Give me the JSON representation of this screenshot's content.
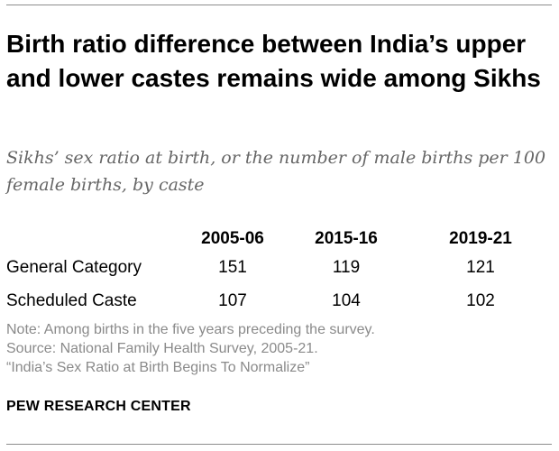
{
  "title": "Birth ratio difference between India’s upper and lower castes remains wide among Sikhs",
  "subtitle": "Sikhs’ sex ratio at birth, or the number of male births per 100 female births, by caste",
  "chart_data": {
    "type": "table",
    "title": "Birth ratio difference between India’s upper and lower castes remains wide among Sikhs",
    "subtitle": "Sikhs’ sex ratio at birth, or the number of male births per 100 female births, by caste",
    "columns": [
      "2005-06",
      "2015-16",
      "2019-21"
    ],
    "rows": [
      {
        "label": "General Category",
        "values": [
          "151",
          "119",
          "121"
        ]
      },
      {
        "label": "Scheduled Caste",
        "values": [
          "107",
          "104",
          "102"
        ]
      }
    ]
  },
  "notes": {
    "note": "Note: Among births in the five years preceding the survey.",
    "source": "Source: National Family Health Survey, 2005-21.",
    "report": "“India’s Sex Ratio at Birth Begins To Normalize”"
  },
  "footer": {
    "org": "PEW RESEARCH CENTER"
  }
}
